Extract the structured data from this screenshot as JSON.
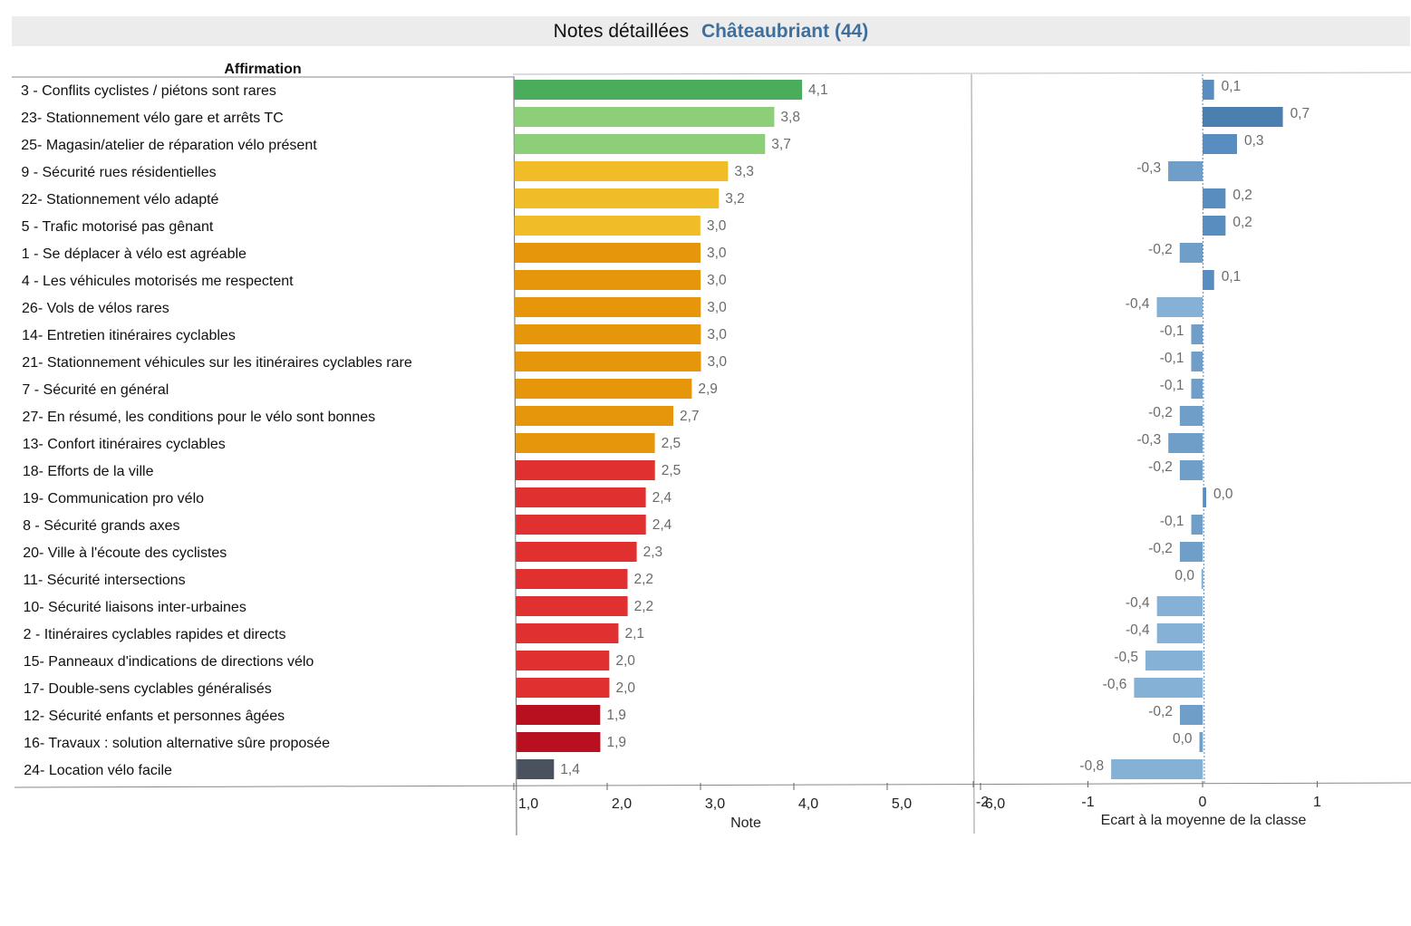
{
  "title": {
    "prefix": "Notes détaillées",
    "city": "Châteaubriant (44)"
  },
  "table_header": "Affirmation",
  "colors": {
    "dark_green": "#4aad5b",
    "light_green": "#8ccf78",
    "yellow": "#f0bc27",
    "orange": "#e5960b",
    "red": "#e0302f",
    "dark_red": "#b8101f",
    "dark_grey": "#4a5260",
    "diff_bar": "#6f9ec9",
    "diff_bar_strong": "#4a7fb0",
    "diff_bar_light": "#86b1d6"
  },
  "chart_data": [
    {
      "type": "bar",
      "orientation": "horizontal",
      "xlabel": "Note",
      "xlim": [
        1,
        6
      ],
      "x_ticks": [
        "1,0",
        "2,0",
        "3,0",
        "4,0",
        "5,0",
        "6,0"
      ],
      "categories": [
        "3 - Conflits cyclistes / piétons sont rares",
        "23- Stationnement vélo gare et arrêts TC",
        "25- Magasin/atelier de réparation vélo présent",
        "9 - Sécurité rues résidentielles",
        "22- Stationnement vélo adapté",
        "5 - Trafic motorisé pas gênant",
        "1 - Se déplacer à vélo est agréable",
        "4 - Les véhicules motorisés me respectent",
        "26- Vols de vélos rares",
        "14- Entretien itinéraires cyclables",
        "21- Stationnement véhicules sur les itinéraires cyclables rare",
        "7 - Sécurité en général",
        "27- En résumé, les conditions pour le vélo sont bonnes",
        "13- Confort itinéraires cyclables",
        "18- Efforts de la ville",
        "19- Communication pro vélo",
        "8 - Sécurité grands axes",
        "20- Ville à l'écoute des cyclistes",
        "11- Sécurité intersections",
        "10- Sécurité liaisons inter-urbaines",
        "2 - Itinéraires cyclables rapides et directs",
        "15- Panneaux d'indications de directions vélo",
        "17- Double-sens cyclables généralisés",
        "12- Sécurité enfants et personnes âgées",
        "16- Travaux : solution alternative sûre proposée",
        "24- Location vélo facile"
      ],
      "values": [
        4.1,
        3.8,
        3.7,
        3.3,
        3.2,
        3.0,
        3.0,
        3.0,
        3.0,
        3.0,
        3.0,
        2.9,
        2.7,
        2.5,
        2.5,
        2.4,
        2.4,
        2.3,
        2.2,
        2.2,
        2.1,
        2.0,
        2.0,
        1.9,
        1.9,
        1.4
      ],
      "value_labels": [
        "4,1",
        "3,8",
        "3,7",
        "3,3",
        "3,2",
        "3,0",
        "3,0",
        "3,0",
        "3,0",
        "3,0",
        "3,0",
        "2,9",
        "2,7",
        "2,5",
        "2,5",
        "2,4",
        "2,4",
        "2,3",
        "2,2",
        "2,2",
        "2,1",
        "2,0",
        "2,0",
        "1,9",
        "1,9",
        "1,4"
      ],
      "bar_colors": [
        "dark_green",
        "light_green",
        "light_green",
        "yellow",
        "yellow",
        "yellow",
        "orange",
        "orange",
        "orange",
        "orange",
        "orange",
        "orange",
        "orange",
        "orange",
        "red",
        "red",
        "red",
        "red",
        "red",
        "red",
        "red",
        "red",
        "red",
        "dark_red",
        "dark_red",
        "dark_grey"
      ]
    },
    {
      "type": "bar",
      "orientation": "horizontal",
      "xlabel": "Ecart à la moyenne de la classe",
      "xlim": [
        -2,
        1.8
      ],
      "x_ticks": [
        "-2",
        "-1",
        "0",
        "1"
      ],
      "values": [
        0.1,
        0.7,
        0.3,
        -0.3,
        0.2,
        0.2,
        -0.2,
        0.1,
        -0.4,
        -0.1,
        -0.1,
        -0.1,
        -0.2,
        -0.3,
        -0.2,
        0.03,
        -0.1,
        -0.2,
        -0.01,
        -0.4,
        -0.4,
        -0.5,
        -0.6,
        -0.2,
        -0.03,
        -0.8
      ],
      "value_labels": [
        "0,1",
        "0,7",
        "0,3",
        "-0,3",
        "0,2",
        "0,2",
        "-0,2",
        "0,1",
        "-0,4",
        "-0,1",
        "-0,1",
        "-0,1",
        "-0,2",
        "-0,3",
        "-0,2",
        "0,0",
        "-0,1",
        "-0,2",
        "0,0",
        "-0,4",
        "-0,4",
        "-0,5",
        "-0,6",
        "-0,2",
        "0,0",
        "-0,8"
      ]
    }
  ]
}
